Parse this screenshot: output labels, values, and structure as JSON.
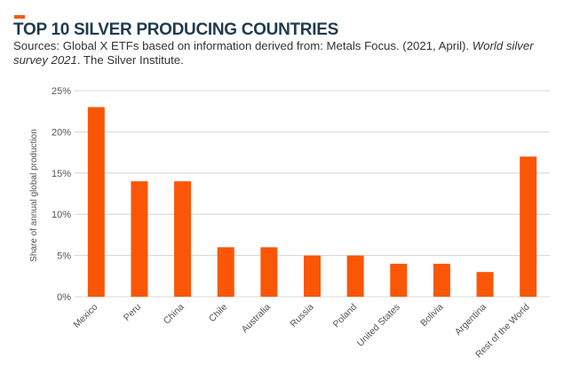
{
  "header": {
    "title": "TOP 10 SILVER PRODUCING COUNTRIES",
    "source_prefix": "Sources: Global X ETFs based on information derived from: Metals Focus. (2021, April). ",
    "source_title": "World silver survey 2021",
    "source_suffix": ". The Silver Institute."
  },
  "colors": {
    "accent": "#f05a1a",
    "bar": "#fb5606",
    "grid": "#cccccc",
    "axis_text": "#555555",
    "title": "#1f3b4d"
  },
  "chart_data": {
    "type": "bar",
    "categories": [
      "Mexico",
      "Peru",
      "China",
      "Chile",
      "Australia",
      "Russia",
      "Poland",
      "United States",
      "Bolivia",
      "Argentina",
      "Rest of the World"
    ],
    "values": [
      23,
      14,
      14,
      6,
      6,
      5,
      5,
      4,
      4,
      3,
      17
    ],
    "unit": "%",
    "title": "TOP 10 SILVER PRODUCING COUNTRIES",
    "xlabel": "",
    "ylabel": "Share of annual global production",
    "ylim": [
      0,
      25
    ],
    "yticks": [
      0,
      5,
      10,
      15,
      20,
      25
    ],
    "ytick_labels": [
      "0%",
      "5%",
      "10%",
      "15%",
      "20%",
      "25%"
    ],
    "grid": true,
    "legend": false
  }
}
